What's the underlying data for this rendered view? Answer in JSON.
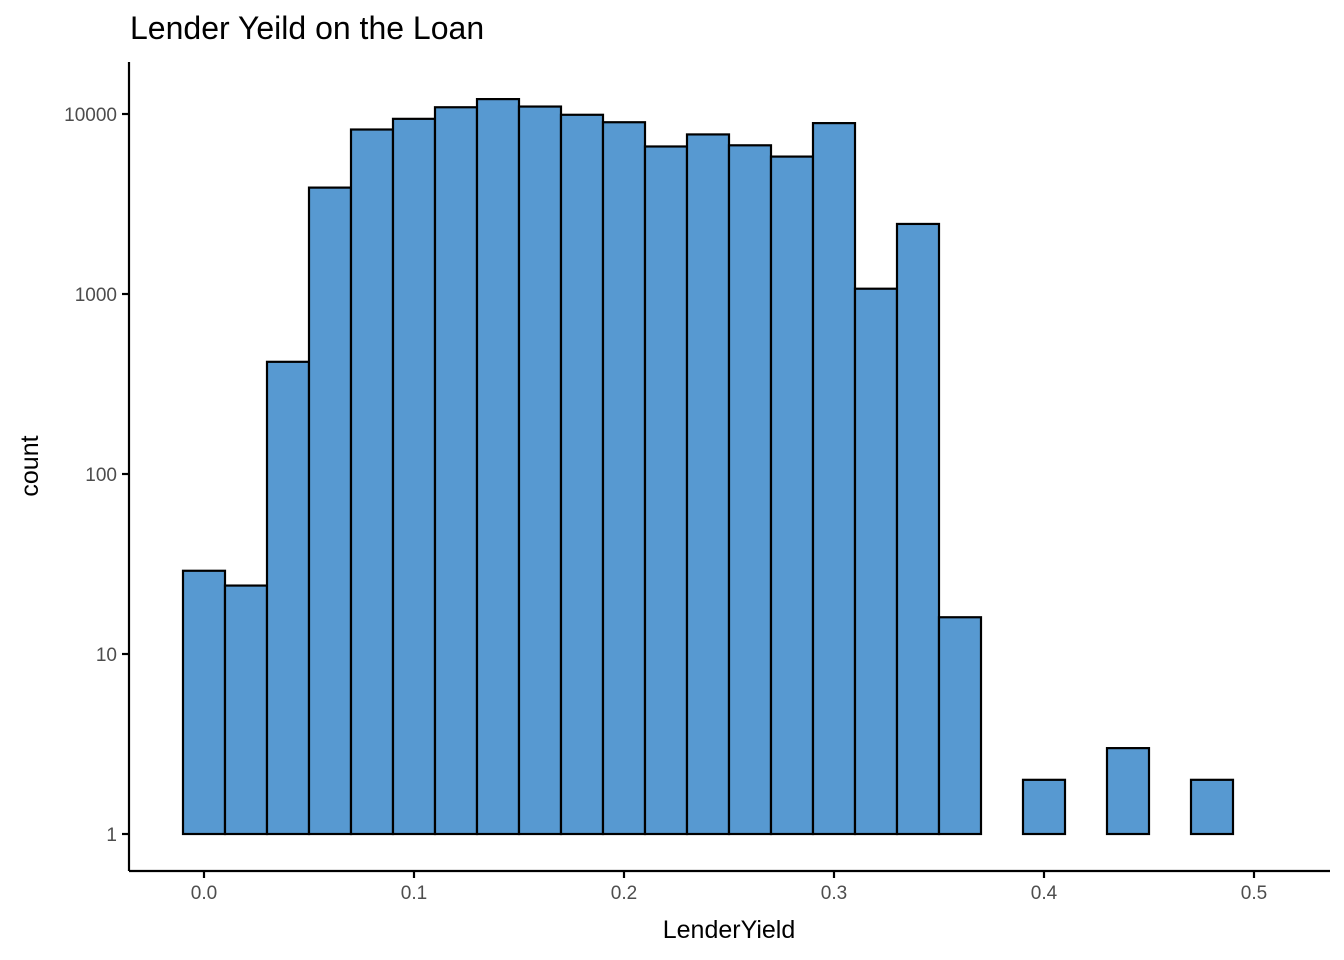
{
  "chart_data": {
    "type": "bar",
    "title": "Lender Yeild on the Loan",
    "xlabel": "LenderYield",
    "ylabel": "count",
    "y_scale": "log10",
    "xlim": [
      -0.035,
      0.535
    ],
    "ylim": [
      0.6,
      18000
    ],
    "x_ticks": [
      0.0,
      0.1,
      0.2,
      0.3,
      0.4,
      0.5
    ],
    "x_tick_labels": [
      "0.0",
      "0.1",
      "0.2",
      "0.3",
      "0.4",
      "0.5"
    ],
    "y_ticks": [
      1,
      10,
      100,
      1000,
      10000
    ],
    "y_tick_labels": [
      "1",
      "10",
      "100",
      "1000",
      "10000"
    ],
    "bin_width": 0.02,
    "bins": [
      {
        "x": 0.0,
        "count": 29
      },
      {
        "x": 0.02,
        "count": 24
      },
      {
        "x": 0.04,
        "count": 420
      },
      {
        "x": 0.06,
        "count": 3900
      },
      {
        "x": 0.08,
        "count": 8200
      },
      {
        "x": 0.1,
        "count": 9400
      },
      {
        "x": 0.12,
        "count": 10900
      },
      {
        "x": 0.14,
        "count": 12100
      },
      {
        "x": 0.16,
        "count": 11000
      },
      {
        "x": 0.18,
        "count": 9900
      },
      {
        "x": 0.2,
        "count": 9000
      },
      {
        "x": 0.22,
        "count": 6600
      },
      {
        "x": 0.24,
        "count": 7700
      },
      {
        "x": 0.26,
        "count": 6700
      },
      {
        "x": 0.28,
        "count": 5800
      },
      {
        "x": 0.3,
        "count": 8900
      },
      {
        "x": 0.32,
        "count": 1070
      },
      {
        "x": 0.34,
        "count": 2450
      },
      {
        "x": 0.36,
        "count": 16
      },
      {
        "x": 0.38,
        "count": 1
      },
      {
        "x": 0.4,
        "count": 2
      },
      {
        "x": 0.42,
        "count": 1
      },
      {
        "x": 0.44,
        "count": 3
      },
      {
        "x": 0.46,
        "count": 1
      },
      {
        "x": 0.48,
        "count": 2
      },
      {
        "x": 0.5,
        "count": 1
      }
    ],
    "fill_color": "#5799d1",
    "stroke_color": "#000000",
    "grid": false,
    "legend": "none"
  }
}
